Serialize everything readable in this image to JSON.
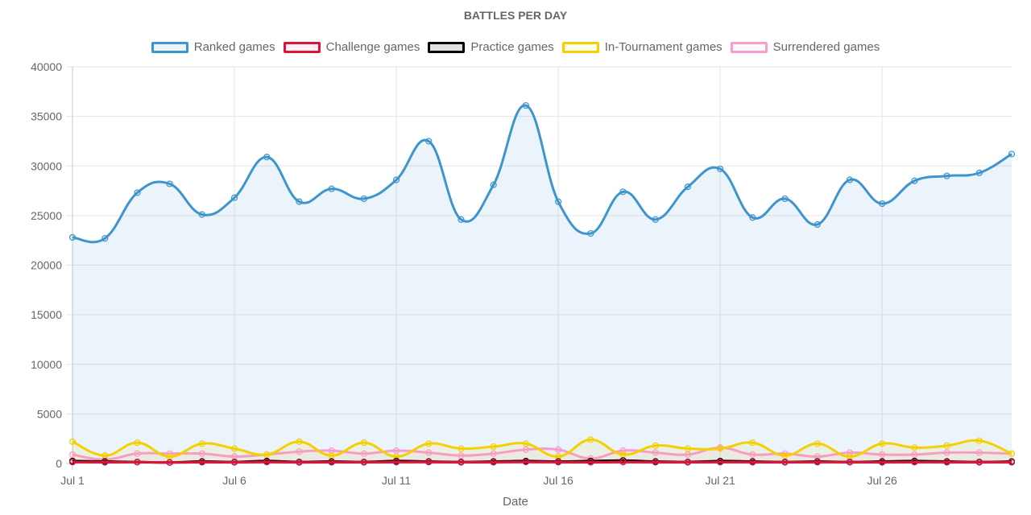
{
  "chart_data": {
    "type": "line",
    "title": "BATTLES PER DAY",
    "xlabel": "Date",
    "ylabel": "",
    "ylim": [
      0,
      40000
    ],
    "y_ticks": [
      0,
      5000,
      10000,
      15000,
      20000,
      25000,
      30000,
      35000,
      40000
    ],
    "x_tick_labels": [
      "Jul 1",
      "Jul 6",
      "Jul 11",
      "Jul 16",
      "Jul 21",
      "Jul 26"
    ],
    "x": [
      "Jul 1",
      "Jul 2",
      "Jul 3",
      "Jul 4",
      "Jul 5",
      "Jul 6",
      "Jul 7",
      "Jul 8",
      "Jul 9",
      "Jul 10",
      "Jul 11",
      "Jul 12",
      "Jul 13",
      "Jul 14",
      "Jul 15",
      "Jul 16",
      "Jul 17",
      "Jul 18",
      "Jul 19",
      "Jul 20",
      "Jul 21",
      "Jul 22",
      "Jul 23",
      "Jul 24",
      "Jul 25",
      "Jul 26",
      "Jul 27",
      "Jul 28",
      "Jul 29",
      "Jul 30"
    ],
    "grid": true,
    "legend_position": "top",
    "series": [
      {
        "name": "Ranked games",
        "color": "#3e95cd",
        "fill": "rgba(62,149,205,0.10)",
        "values": [
          22800,
          22700,
          27300,
          28200,
          25100,
          26800,
          30900,
          26400,
          27700,
          26700,
          28600,
          32500,
          24600,
          28100,
          36100,
          26400,
          23200,
          27400,
          24600,
          27900,
          29700,
          24800,
          26700,
          24100,
          28600,
          26200,
          28500,
          29000,
          29300,
          31200
        ]
      },
      {
        "name": "Challenge games",
        "color": "#dc143c",
        "fill": "rgba(220,20,60,0.08)",
        "values": [
          150,
          120,
          140,
          100,
          130,
          120,
          150,
          110,
          130,
          120,
          140,
          150,
          120,
          130,
          160,
          140,
          120,
          150,
          130,
          120,
          140,
          130,
          120,
          140,
          130,
          120,
          140,
          130,
          120,
          130
        ]
      },
      {
        "name": "Practice games",
        "color": "#000000",
        "fill": "rgba(0,0,0,0.12)",
        "values": [
          250,
          200,
          150,
          100,
          200,
          150,
          250,
          150,
          200,
          150,
          250,
          200,
          150,
          200,
          250,
          200,
          250,
          300,
          200,
          150,
          250,
          200,
          150,
          200,
          150,
          200,
          250,
          200,
          150,
          200
        ]
      },
      {
        "name": "In-Tournament games",
        "color": "#f5d000",
        "fill": "rgba(245,208,0,0.08)",
        "values": [
          2200,
          800,
          2100,
          700,
          2000,
          1500,
          900,
          2200,
          800,
          2100,
          700,
          2000,
          1500,
          1700,
          2000,
          700,
          2400,
          900,
          1800,
          1500,
          1500,
          2100,
          800,
          2000,
          700,
          2000,
          1600,
          1800,
          2300,
          1000
        ]
      },
      {
        "name": "Surrendered games",
        "color": "#f89bce",
        "fill": "rgba(248,155,206,0.08)",
        "values": [
          900,
          400,
          1000,
          1000,
          1000,
          700,
          900,
          1200,
          1300,
          1000,
          1300,
          1100,
          800,
          1000,
          1400,
          1400,
          500,
          1300,
          1100,
          900,
          1600,
          900,
          1000,
          700,
          1100,
          900,
          900,
          1100,
          1100,
          1000
        ]
      }
    ]
  }
}
